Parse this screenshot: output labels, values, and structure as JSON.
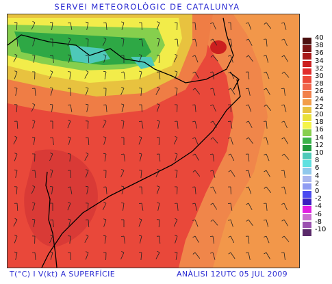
{
  "header": {
    "title": "SERVEI METEOROLÒGIC DE CATALUNYA"
  },
  "footer": {
    "variable_label": "T(°C) I V(kt) A SUPERFÍCIE",
    "analysis_label": "ANÀLISI 12UTC 05 JUL 2009"
  },
  "legend": {
    "items": [
      {
        "label": "40",
        "color": "#4a0f0f"
      },
      {
        "label": "38",
        "color": "#7a1414"
      },
      {
        "label": "36",
        "color": "#a81818"
      },
      {
        "label": "34",
        "color": "#cc1f1f"
      },
      {
        "label": "32",
        "color": "#e12d2d"
      },
      {
        "label": "30",
        "color": "#ee4a3a"
      },
      {
        "label": "28",
        "color": "#f0644a"
      },
      {
        "label": "26",
        "color": "#f1804a"
      },
      {
        "label": "24",
        "color": "#f29d48"
      },
      {
        "label": "22",
        "color": "#e8c23f"
      },
      {
        "label": "20",
        "color": "#e9e03a"
      },
      {
        "label": "18",
        "color": "#f4f44a"
      },
      {
        "label": "16",
        "color": "#86cf4d"
      },
      {
        "label": "14",
        "color": "#3ab349"
      },
      {
        "label": "12",
        "color": "#1e9a3b"
      },
      {
        "label": "10",
        "color": "#4ec9b9"
      },
      {
        "label": "8",
        "color": "#5fe0e0"
      },
      {
        "label": "6",
        "color": "#8fc8ec"
      },
      {
        "label": "4",
        "color": "#a9b6ee"
      },
      {
        "label": "2",
        "color": "#8f9cf2"
      },
      {
        "label": "0",
        "color": "#4a4af0"
      },
      {
        "label": "-2",
        "color": "#3a1fbf"
      },
      {
        "label": "-4",
        "color": "#e21ee2"
      },
      {
        "label": "-6",
        "color": "#c86ed0"
      },
      {
        "label": "-8",
        "color": "#9b4fb0"
      },
      {
        "label": "-10",
        "color": "#5a2a6a"
      }
    ]
  },
  "map": {
    "wind_barb_color": "#222222",
    "coastline_color": "#000000"
  }
}
